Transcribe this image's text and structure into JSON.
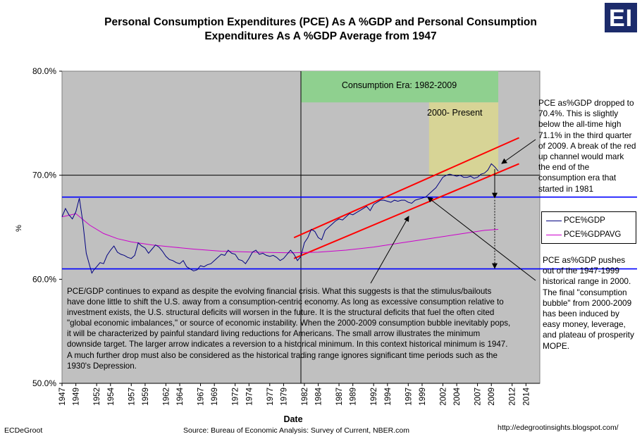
{
  "title_line1": "Personal Consumption Expenditures (PCE) As A %GDP and Personal Consumption",
  "title_line2": "Expenditures As A %GDP Average from 1947",
  "logo_text": "EI",
  "footer_left": "ECDeGroot",
  "footer_source": "Source:  Bureau of Economic Analysis: Survey of Current, NBER.com",
  "footer_url": "http://edegrootinsights.blogspot.com/",
  "consumption_era_label": "Consumption Era:  1982-2009",
  "present_label": "2000- Present",
  "note_top": "PCE as%GDP dropped to 70.4%.  This is slightly below the all-time high 71.1% in the third quarter of 2009.  A break of the red up channel would mark the end of the consumption era that started in 1981",
  "note_bottom": "PCE as%GDP pushes out of the 1947-1999 historical range in 2000.  The final \"consumption bubble\" from 2000-2009 has been induced by easy money, leverage, and plateau of prosperity MOPE.",
  "body_text": "PCE/GDP continues to expand as despite the evolving financial crisis.  What this suggests is that the stimulus/bailouts have done little to shift the U.S. away from a consumption-centric economy.  As long as excessive consumption relative to investment exists, the U.S. structural deficits will worsen in the future.  It is the structural deficits that fuel the often cited \"global economic imbalances,\" or source of economic instability.  When the 2000-2009 consumption bubble inevitably pops, it will be characterized by painful standard living reductions for Americans.  The small arrow illustrates the minimum downside target.  The larger arrow indicates a reversion to a historical minimum.  In this context historical minimum is 1947.  A much further drop must also be considered as the historical trading range ignores significant time periods such as the 1930's Depression.",
  "colors": {
    "plot_bg": "#c0c0c0",
    "pce": "#000080",
    "avg": "#cc00cc",
    "channel": "#ff0000",
    "range_line": "#0000ff",
    "era_box": "#8fd08f",
    "present_box": "#d7d496"
  },
  "chart_data": {
    "type": "line",
    "title": "Personal Consumption Expenditures (PCE) As A %GDP and Personal Consumption Expenditures As A %GDP Average from 1947",
    "xlabel": "Date",
    "ylabel": "%",
    "xlim": [
      1947,
      2016
    ],
    "ylim": [
      50,
      80
    ],
    "y_ticks": [
      "50.0%",
      "60.0%",
      "70.0%",
      "80.0%"
    ],
    "y_tick_values": [
      50,
      60,
      70,
      80
    ],
    "x_ticks": [
      "1947",
      "1949",
      "1952",
      "1954",
      "1957",
      "1959",
      "1962",
      "1964",
      "1967",
      "1969",
      "1972",
      "1974",
      "1977",
      "1979",
      "1982",
      "1984",
      "1987",
      "1989",
      "1992",
      "1994",
      "1997",
      "1999",
      "2002",
      "2004",
      "2007",
      "2009",
      "2012",
      "2014"
    ],
    "grid": false,
    "legend_position": "right",
    "series": [
      {
        "name": "PCE%GDP",
        "x": [
          1947,
          1947.5,
          1948,
          1948.5,
          1949,
          1949.5,
          1950,
          1950.5,
          1951,
          1951.3,
          1951.6,
          1952,
          1952.5,
          1953,
          1953.5,
          1954,
          1954.5,
          1955,
          1955.5,
          1956,
          1956.5,
          1957,
          1957.5,
          1958,
          1958.5,
          1959,
          1959.5,
          1960,
          1960.5,
          1961,
          1961.5,
          1962,
          1962.5,
          1963,
          1963.5,
          1964,
          1964.5,
          1965,
          1965.5,
          1966,
          1966.5,
          1967,
          1967.5,
          1968,
          1968.5,
          1969,
          1969.5,
          1970,
          1970.5,
          1971,
          1971.5,
          1972,
          1972.5,
          1973,
          1973.5,
          1974,
          1974.5,
          1975,
          1975.5,
          1976,
          1976.5,
          1977,
          1977.5,
          1978,
          1978.5,
          1979,
          1979.5,
          1980,
          1980.5,
          1981,
          1981.5,
          1982,
          1982.5,
          1983,
          1983.5,
          1984,
          1984.5,
          1985,
          1985.5,
          1986,
          1986.5,
          1987,
          1987.5,
          1988,
          1988.5,
          1989,
          1989.5,
          1990,
          1990.5,
          1991,
          1991.5,
          1992,
          1992.5,
          1993,
          1993.5,
          1994,
          1994.5,
          1995,
          1995.5,
          1996,
          1996.5,
          1997,
          1997.5,
          1998,
          1998.5,
          1999,
          1999.5,
          2000,
          2000.5,
          2001,
          2001.5,
          2002,
          2002.5,
          2003,
          2003.5,
          2004,
          2004.5,
          2005,
          2005.5,
          2006,
          2006.5,
          2007,
          2007.5,
          2008,
          2008.5,
          2009,
          2009.5,
          2010
        ],
        "values": [
          66.0,
          66.8,
          66.2,
          65.8,
          66.5,
          67.8,
          65.5,
          62.5,
          61.3,
          60.6,
          60.9,
          61.2,
          61.6,
          61.5,
          62.3,
          62.8,
          63.2,
          62.6,
          62.4,
          62.3,
          62.1,
          62.0,
          62.3,
          63.5,
          63.2,
          63.0,
          62.5,
          62.9,
          63.3,
          63.1,
          62.7,
          62.2,
          61.9,
          61.8,
          61.6,
          61.5,
          61.8,
          61.2,
          61.0,
          60.8,
          60.9,
          61.3,
          61.2,
          61.4,
          61.5,
          61.8,
          62.1,
          62.4,
          62.3,
          62.8,
          62.5,
          62.4,
          61.9,
          61.8,
          61.5,
          62.0,
          62.6,
          62.8,
          62.4,
          62.5,
          62.3,
          62.2,
          62.3,
          62.1,
          61.8,
          62.0,
          62.4,
          62.8,
          62.4,
          61.8,
          62.2,
          63.5,
          64.0,
          64.8,
          64.6,
          64.0,
          63.8,
          64.7,
          65.0,
          65.3,
          65.6,
          65.8,
          65.7,
          66.0,
          66.3,
          66.2,
          66.4,
          66.6,
          66.8,
          67.0,
          66.6,
          67.2,
          67.4,
          67.6,
          67.6,
          67.5,
          67.4,
          67.6,
          67.5,
          67.6,
          67.6,
          67.4,
          67.3,
          67.6,
          67.7,
          67.8,
          67.9,
          68.2,
          68.5,
          68.8,
          69.3,
          69.8,
          70.0,
          70.1,
          70.0,
          69.9,
          70.0,
          69.8,
          69.8,
          69.9,
          69.7,
          69.8,
          70.1,
          70.2,
          70.5,
          71.1,
          70.8,
          70.4
        ]
      },
      {
        "name": "PCE%GDPAVG",
        "x": [
          1947,
          1949,
          1951,
          1953,
          1955,
          1957,
          1960,
          1963,
          1966,
          1970,
          1975,
          1980,
          1984,
          1988,
          1992,
          1996,
          2000,
          2004,
          2008,
          2010
        ],
        "values": [
          66.0,
          66.3,
          65.2,
          64.4,
          63.9,
          63.6,
          63.3,
          63.1,
          62.9,
          62.7,
          62.6,
          62.55,
          62.6,
          62.8,
          63.1,
          63.5,
          63.9,
          64.3,
          64.7,
          64.8
        ]
      }
    ],
    "reference_lines": [
      {
        "name": "historical range high",
        "y": 67.9
      },
      {
        "name": "historical range low",
        "y": 61.0
      }
    ],
    "channel": [
      {
        "name": "upper channel",
        "x": [
          1980.5,
          2013.0
        ],
        "y": [
          64.0,
          73.6
        ]
      },
      {
        "name": "lower channel",
        "x": [
          1980.5,
          2013.0
        ],
        "y": [
          62.0,
          71.1
        ]
      }
    ],
    "vertical_line_x": 1981.5,
    "regions": [
      {
        "label": "Consumption Era:  1982-2009",
        "x": [
          1981.5,
          2010
        ],
        "y": [
          77,
          80
        ]
      },
      {
        "label": "2000- Present",
        "x": [
          2000,
          2010
        ],
        "y": [
          70,
          77
        ]
      }
    ]
  }
}
